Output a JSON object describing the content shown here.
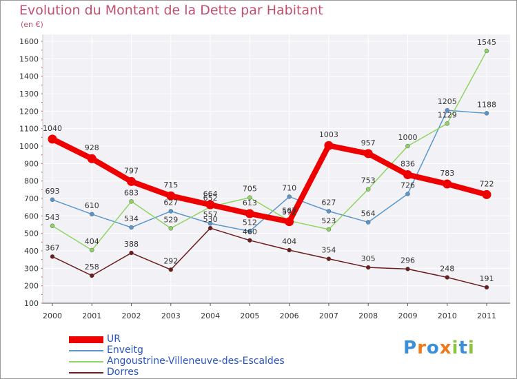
{
  "chart_data": {
    "type": "line",
    "title": "Evolution du Montant de la Dette par Habitant",
    "subtitle": "(en €)",
    "x": [
      "2000",
      "2001",
      "2002",
      "2003",
      "2004",
      "2005",
      "2006",
      "2007",
      "2008",
      "2009",
      "2010",
      "2011"
    ],
    "ylim": [
      100,
      1600
    ],
    "yticks": [
      "1600",
      "1500",
      "1400",
      "1300",
      "1200",
      "1100",
      "1000",
      "900",
      "800",
      "700",
      "600",
      "500",
      "400",
      "300",
      "200",
      "100"
    ],
    "grid": true,
    "legend_position": "bottom-left",
    "series": [
      {
        "name": "Dorres",
        "color": "#6b1c1c",
        "values": [
          367,
          258,
          388,
          292,
          530,
          460,
          404,
          354,
          305,
          296,
          248,
          191
        ],
        "labels": [
          "367",
          "258",
          "388",
          "292",
          "530",
          "460",
          "404",
          "354",
          "305",
          "296",
          "248",
          "191"
        ]
      },
      {
        "name": "Enveitg",
        "color": "#5a96cc",
        "values": [
          693,
          610,
          534,
          627,
          557,
          512,
          710,
          627,
          564,
          726,
          1205,
          1188
        ],
        "labels": [
          "693",
          "610",
          "534",
          "627",
          "557",
          "512",
          "710",
          "627",
          "564",
          "726",
          "1205",
          "1188"
        ]
      },
      {
        "name": "Angoustrine-Villeneuve-des-Escaldes",
        "color": "#8fd462",
        "values": [
          543,
          404,
          683,
          529,
          652,
          705,
          572,
          523,
          753,
          1000,
          1129,
          1545
        ],
        "labels": [
          "543",
          "404",
          "683",
          "529",
          "652",
          "705",
          "572",
          "523",
          "753",
          "1000",
          "1129",
          "1545"
        ]
      },
      {
        "name": "UR",
        "color": "#ee0000",
        "values": [
          1040,
          928,
          797,
          715,
          664,
          613,
          567,
          1003,
          957,
          836,
          783,
          722
        ],
        "labels": [
          "1040",
          "928",
          "797",
          "715",
          "664",
          "613",
          "567",
          "1003",
          "957",
          "836",
          "783",
          "722"
        ]
      }
    ]
  },
  "legend": {
    "items": [
      {
        "name": "UR",
        "color": "#ee0000",
        "width": 10
      },
      {
        "name": "Enveitg",
        "color": "#5a96cc",
        "width": 2
      },
      {
        "name": "Angoustrine-Villeneuve-des-Escaldes",
        "color": "#8fd462",
        "width": 2
      },
      {
        "name": "Dorres",
        "color": "#6b1c1c",
        "width": 2
      }
    ]
  },
  "logo": {
    "text": "Proxiti",
    "letter_colors": [
      "#3a8fd8",
      "#f07a1a",
      "#3a8fd8",
      "#f07a1a",
      "#8ac43f",
      "#3a8fd8",
      "#8ac43f"
    ]
  }
}
